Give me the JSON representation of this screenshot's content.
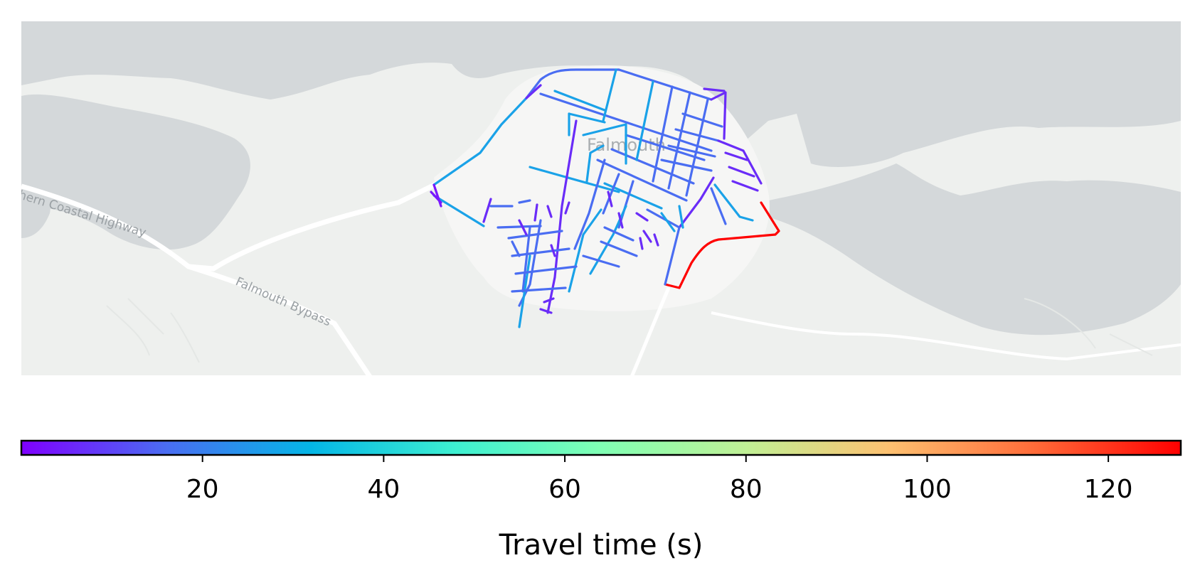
{
  "map": {
    "place_labels": [
      "Falmouth"
    ],
    "road_labels": [
      "Northern Coastal Highway",
      "Falmouth Bypass"
    ],
    "colors": {
      "water": "#d4d8da",
      "land": "#eef0ee",
      "town_area": "#f6f6f5",
      "road": "#ffffff"
    }
  },
  "colorbar": {
    "label": "Travel time (s)",
    "min": 0,
    "max": 128,
    "ticks": [
      20,
      40,
      60,
      80,
      100,
      120
    ],
    "colormap": "rainbow",
    "stops": [
      "#7f00ff",
      "#4a6df2",
      "#04b6e6",
      "#3ef0d1",
      "#80ffb4",
      "#c0f095",
      "#fec070",
      "#ff6a38",
      "#ff0000"
    ]
  }
}
